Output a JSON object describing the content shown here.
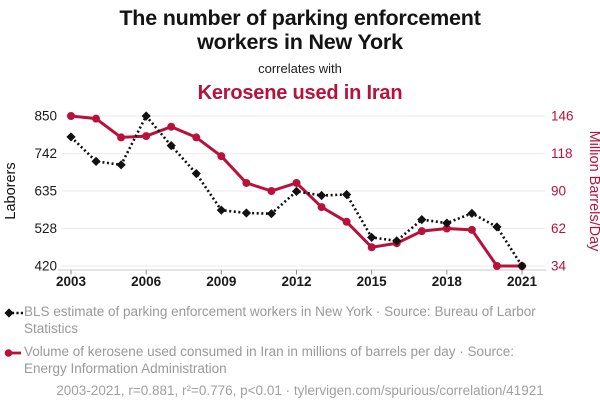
{
  "header": {
    "title_line1": "The number of parking enforcement",
    "title_line2": "workers in New York",
    "connector": "correlates with",
    "subtitle": "Kerosene used in Iran"
  },
  "colors": {
    "accent_red": "#b8123c",
    "series_black": "#111111",
    "grid": "#ebebeb",
    "axis_line": "#c9c9c9",
    "tick_mark": "#8c8c8c",
    "tick_text": "#1a1a1a",
    "muted_text": "#999999"
  },
  "chart_data": {
    "type": "line",
    "x": [
      2003,
      2004,
      2005,
      2006,
      2007,
      2008,
      2009,
      2010,
      2011,
      2012,
      2013,
      2014,
      2015,
      2016,
      2017,
      2018,
      2019,
      2020,
      2021
    ],
    "x_ticks": [
      2003,
      2006,
      2009,
      2012,
      2015,
      2018,
      2021
    ],
    "series": [
      {
        "name": "BLS estimate of parking enforcement workers in New York",
        "axis": "left",
        "color": "#111111",
        "marker": "diamond",
        "line": "dotted",
        "values": [
          790,
          720,
          710,
          850,
          765,
          685,
          580,
          572,
          570,
          634,
          622,
          625,
          502,
          492,
          553,
          543,
          571,
          532,
          420
        ]
      },
      {
        "name": "Volume of kerosene used consumed in Iran in millions of barrels per day",
        "axis": "right",
        "color": "#b8123c",
        "marker": "circle",
        "line": "solid",
        "values": [
          146,
          144,
          130,
          131,
          138,
          130,
          116,
          96,
          90,
          96,
          78,
          67,
          48,
          51,
          60,
          62,
          61,
          34,
          34
        ]
      }
    ],
    "left_axis": {
      "label": "Laborers",
      "ticks": [
        850,
        742,
        635,
        528,
        420
      ],
      "range": [
        420,
        850
      ]
    },
    "right_axis": {
      "label": "Million Barrels/Day",
      "ticks": [
        146,
        118,
        90,
        62,
        34
      ],
      "range": [
        34,
        146
      ]
    },
    "grid": true,
    "legend_position": "bottom"
  },
  "legend": [
    {
      "marker": "diamond-dotted",
      "color": "#111111",
      "label": "BLS estimate of parking enforcement workers in New York · Source: Bureau of Larbor Statistics"
    },
    {
      "marker": "circle-solid",
      "color": "#b8123c",
      "label": "Volume of kerosene used consumed in Iran in millions of barrels per day · Source: Energy Information Administration"
    }
  ],
  "footer": {
    "text": "2003-2021, r=0.881, r²=0.776, p<0.01 · tylervigen.com/spurious/correlation/41921"
  }
}
